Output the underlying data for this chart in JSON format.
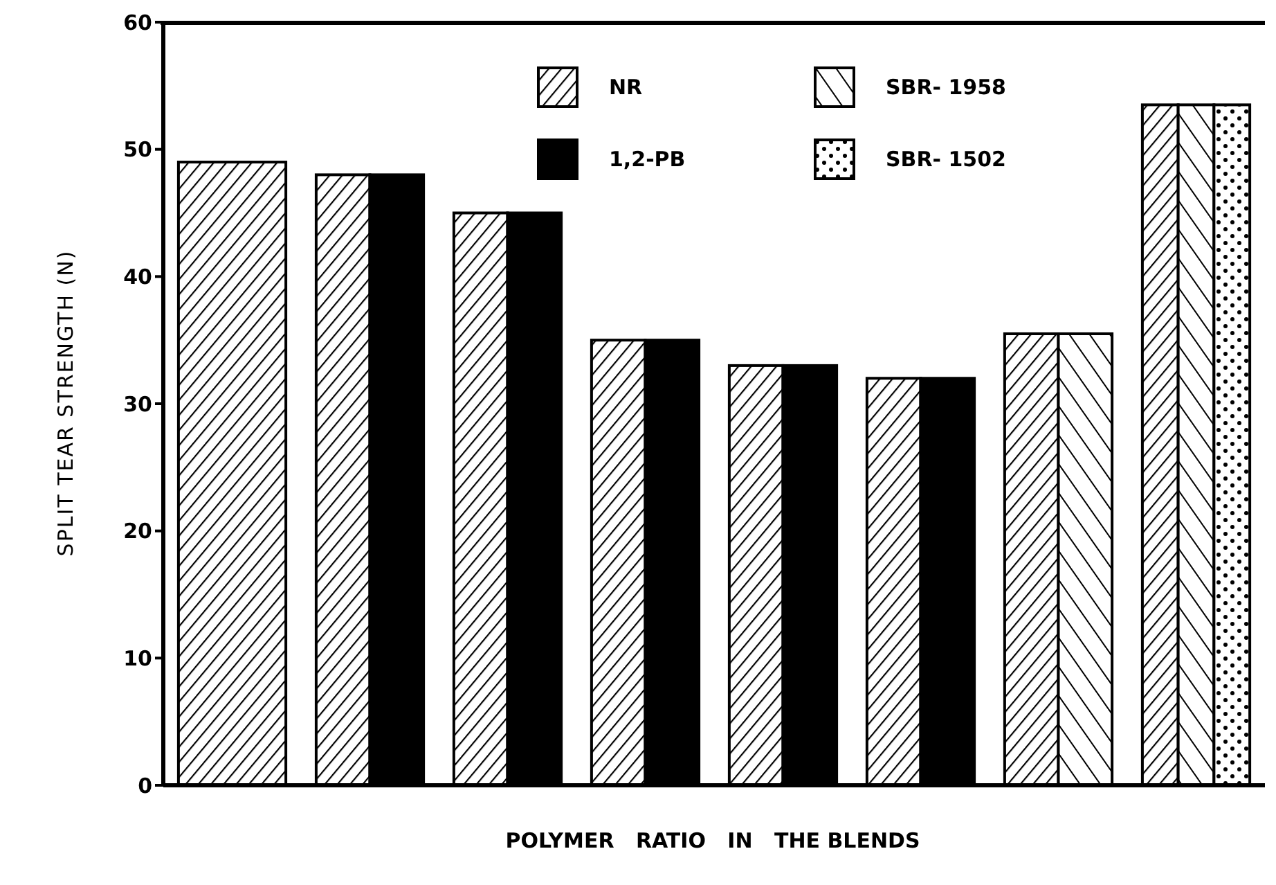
{
  "chart_data": {
    "type": "bar",
    "xlabel": "POLYMER   RATIO   IN   THE BLENDS",
    "ylabel": "SPLIT TEAR STRENGTH (N)",
    "categories": [
      null,
      null,
      null,
      null,
      null,
      null,
      null,
      null
    ],
    "series": [
      {
        "name": "NR",
        "color": "#000000",
        "values": [
          49,
          48,
          45,
          35,
          33,
          32,
          35.5,
          53.5
        ]
      },
      {
        "name": "SBR- 1958",
        "color": "#000000",
        "values": [
          null,
          null,
          null,
          null,
          null,
          null,
          35.5,
          53.5
        ]
      },
      {
        "name": "1,2-PB",
        "color": "#000000",
        "values": [
          null,
          48,
          45,
          35,
          33,
          32,
          null,
          null
        ]
      },
      {
        "name": "SBR- 1502",
        "color": "#000000",
        "values": [
          null,
          null,
          null,
          null,
          null,
          null,
          null,
          53.5
        ]
      }
    ],
    "ylim": [
      0,
      60
    ],
    "yticks": [
      0,
      10,
      20,
      30,
      40,
      50,
      60
    ],
    "legend": "top",
    "grid": false
  }
}
